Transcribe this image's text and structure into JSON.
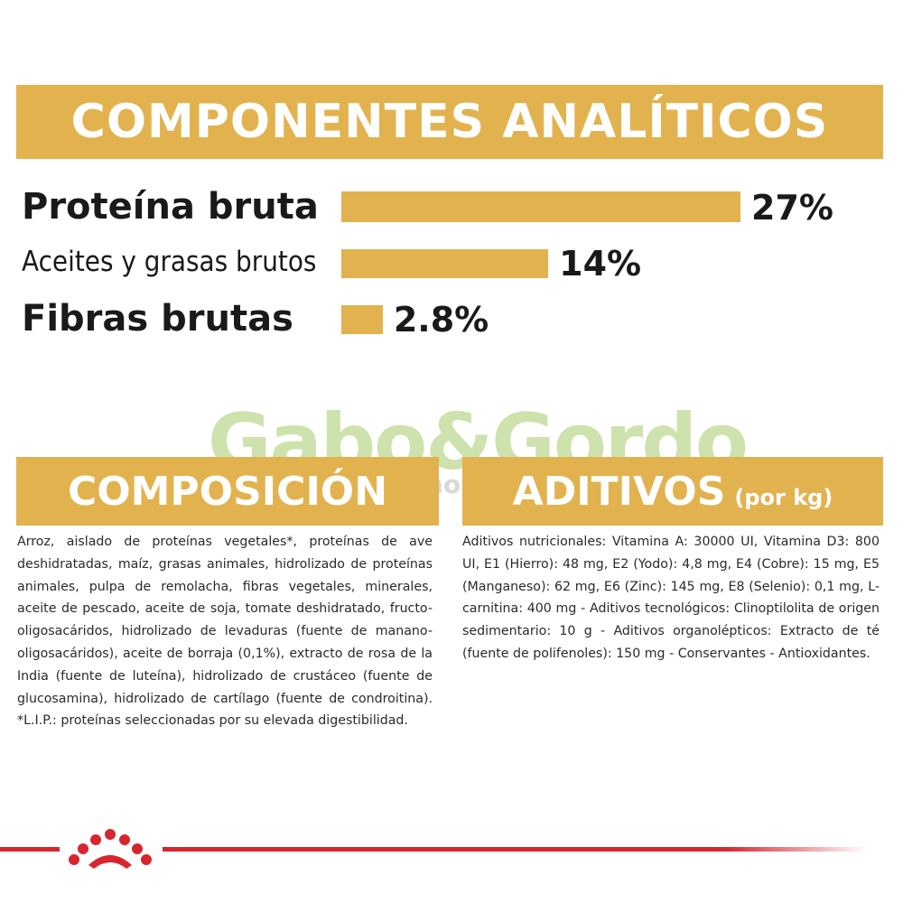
{
  "headings": {
    "components": "COMPONENTES ANALÍTICOS",
    "composition": "COMPOSICIÓN",
    "additives": "ADITIVOS",
    "additives_unit": "(por kg)"
  },
  "metrics": [
    {
      "label": "Proteína bruta",
      "value_text": "27%",
      "value": 27
    },
    {
      "label": "Aceites y grasas brutos",
      "value_text": "14%",
      "value": 14
    },
    {
      "label": "Fibras brutas",
      "value_text": "2.8%",
      "value": 2.8
    }
  ],
  "composition_text": "Arroz, aislado de proteínas vegetales*, proteínas de ave deshidratadas, maíz, grasas animales, hidrolizado de proteínas animales, pulpa de remolacha, fibras vegetales, minerales, aceite de pescado, aceite de soja, tomate deshidratado, fructo-oligosacáridos, hidrolizado de levaduras (fuente de manano-oligosacáridos), aceite de borraja (0,1%), extracto de rosa de la India (fuente de luteína), hidrolizado de crustáceo (fuente de glucosamina), hidrolizado de cartílago (fuente de condroitina). *L.I.P.: proteínas seleccionadas por su elevada digestibilidad.",
  "additives_text": "Aditivos nutricionales: Vitamina A: 30000 UI, Vitamina D3: 800 UI, E1 (Hierro): 48 mg, E2 (Yodo): 4,8 mg, E4 (Cobre): 15 mg, E5 (Manganeso): 62 mg, E6 (Zinc): 145 mg, E8 (Selenio): 0,1 mg, L-carnitina: 400 mg - Aditivos tecnológicos: Clinoptilolita de origen sedimentario: 10 g - Aditivos organolépticos: Extracto de té (fuente de polifenoles): 150 mg - Conservantes - Antioxidantes.",
  "watermark": {
    "text": "Gabo&Gordo",
    "sub": "E-Shop"
  },
  "colors": {
    "accent": "#e2b24e",
    "brand_red": "#d7262e",
    "watermark_green": "#a5cc6a"
  },
  "icons": {
    "footer_logo": "royal-canin-crown-icon"
  }
}
